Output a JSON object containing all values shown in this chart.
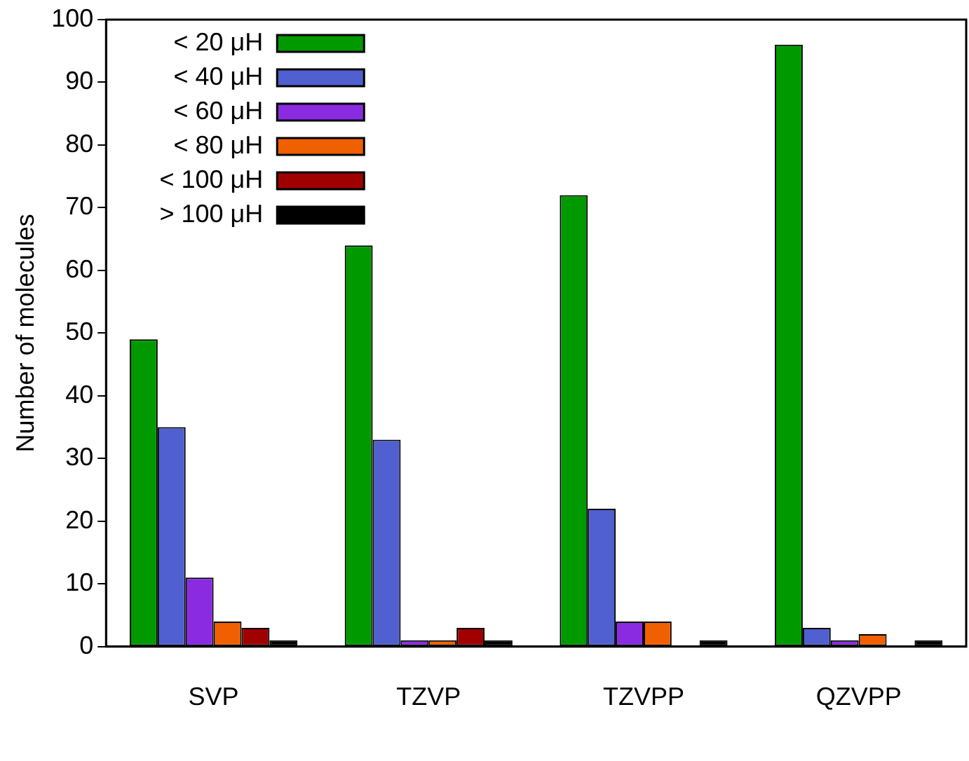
{
  "chart_data": {
    "type": "bar",
    "ylabel": "Number of molecules",
    "categories": [
      "SVP",
      "TZVP",
      "TZVPP",
      "QZVPP"
    ],
    "series": [
      {
        "name": "< 20 μH",
        "color": "#009900",
        "values": [
          49,
          64,
          72,
          96
        ]
      },
      {
        "name": "< 40 μH",
        "color": "#5060d0",
        "values": [
          35,
          33,
          22,
          3
        ]
      },
      {
        "name": "< 60 μH",
        "color": "#8a2be2",
        "values": [
          11,
          1,
          4,
          1
        ]
      },
      {
        "name": "< 80 μH",
        "color": "#f06000",
        "values": [
          4,
          1,
          4,
          2
        ]
      },
      {
        "name": "< 100 μH",
        "color": "#a00000",
        "values": [
          3,
          3,
          0,
          0
        ]
      },
      {
        "name": "> 100 μH",
        "color": "#000000",
        "values": [
          1,
          1,
          1,
          1
        ]
      }
    ],
    "ylim": [
      0,
      100
    ],
    "yticks": [
      0,
      10,
      20,
      30,
      40,
      50,
      60,
      70,
      80,
      90,
      100
    ],
    "grid": false,
    "legend": "top left"
  }
}
